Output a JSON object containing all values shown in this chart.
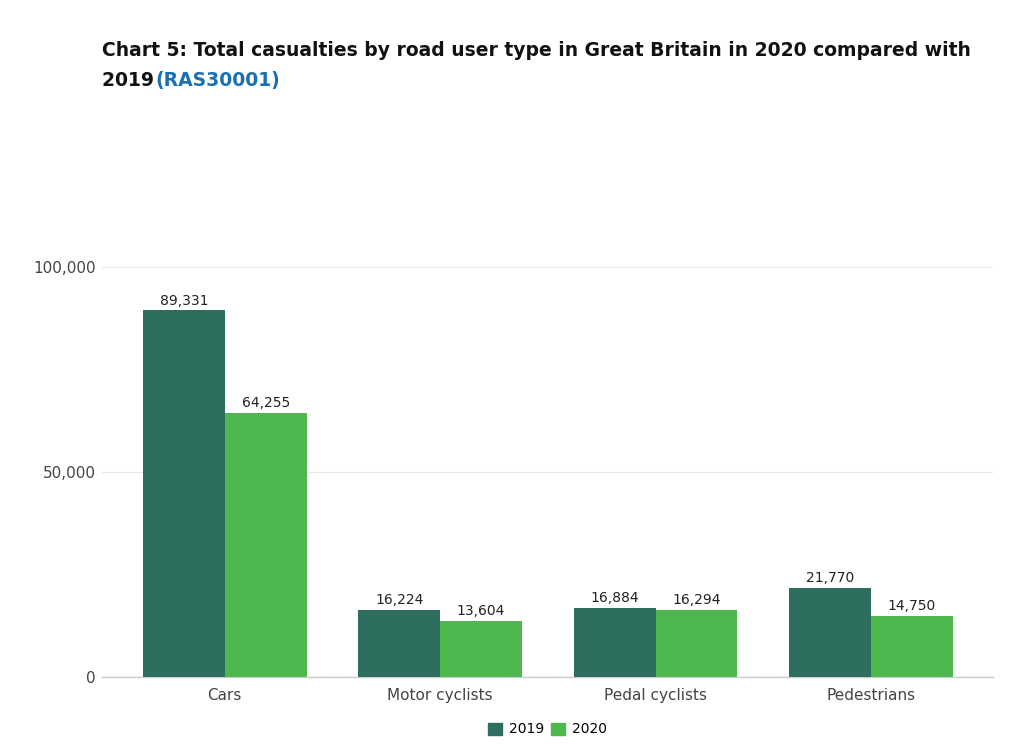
{
  "title_line1": "Chart 5: Total casualties by road user type in Great Britain in 2020 compared with",
  "title_line2_bold": "2019 ",
  "title_link": "(RAS30001)",
  "categories": [
    "Cars",
    "Motor cyclists",
    "Pedal cyclists",
    "Pedestrians"
  ],
  "values_2019": [
    89331,
    16224,
    16884,
    21770
  ],
  "values_2020": [
    64255,
    13604,
    16294,
    14750
  ],
  "labels_2019": [
    "89,331",
    "16,224",
    "16,884",
    "21,770"
  ],
  "labels_2020": [
    "64,255",
    "13,604",
    "16,294",
    "14,750"
  ],
  "color_2019": "#2d6e5e",
  "color_2020": "#4db84d",
  "ylim": [
    0,
    110000
  ],
  "yticks": [
    0,
    50000,
    100000
  ],
  "ytick_labels": [
    "0",
    "50,000",
    "100,000"
  ],
  "bar_width": 0.38,
  "background_color": "#ffffff",
  "legend_labels": [
    "2019",
    "2020"
  ],
  "title_fontsize": 13.5,
  "label_fontsize": 10,
  "tick_fontsize": 11
}
